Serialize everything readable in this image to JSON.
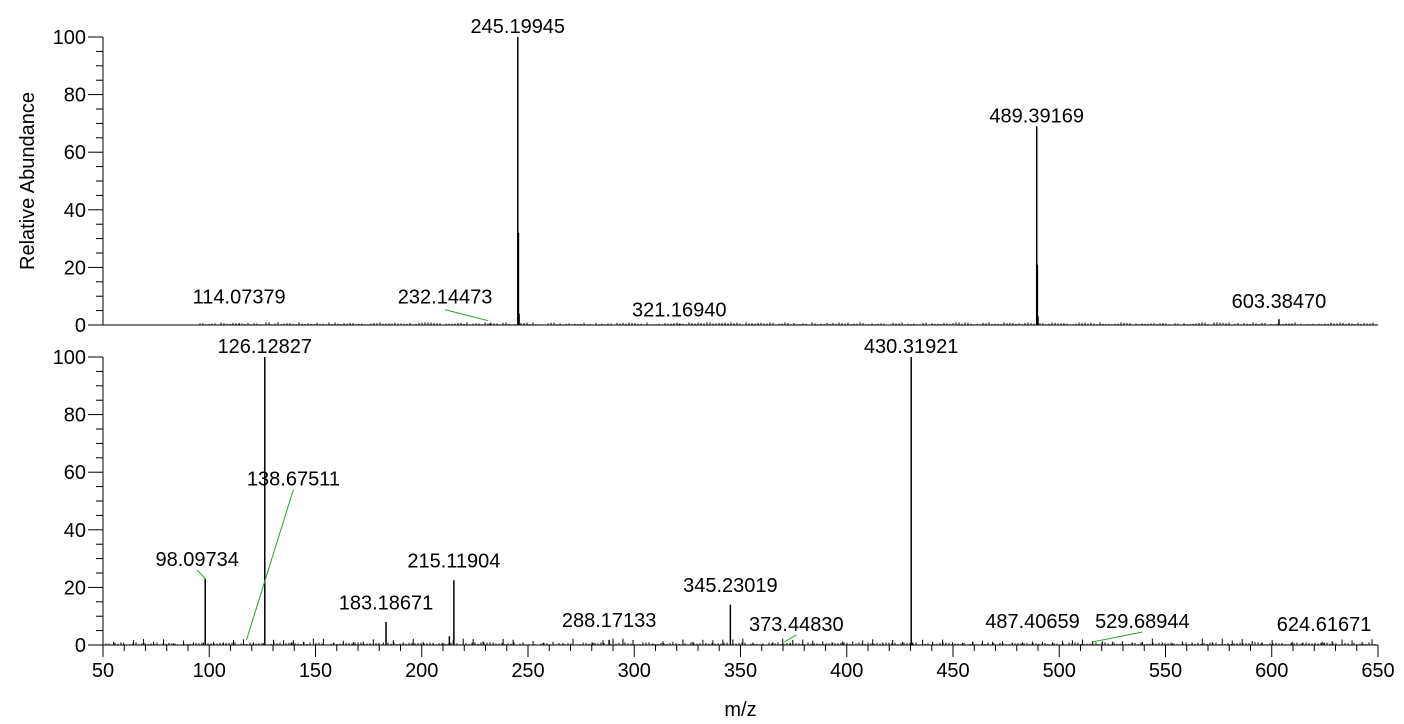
{
  "chart_data": [
    {
      "type": "bar",
      "subtype": "mass-spectrum",
      "ylabel": "Relative Abundance",
      "ylim": [
        0,
        100
      ],
      "y_ticks": [
        "0",
        "20",
        "40",
        "60",
        "80",
        "100"
      ],
      "xlim": [
        50,
        650
      ],
      "peaks": [
        {
          "mz": 114.07379,
          "intensity": 0.6
        },
        {
          "mz": 232.14473,
          "intensity": 0.5
        },
        {
          "mz": 245.19945,
          "intensity": 100
        },
        {
          "mz": 245.5,
          "intensity": 32
        },
        {
          "mz": 245.8,
          "intensity": 4
        },
        {
          "mz": 321.1694,
          "intensity": 0.4
        },
        {
          "mz": 489.39169,
          "intensity": 69
        },
        {
          "mz": 489.7,
          "intensity": 21
        },
        {
          "mz": 490.0,
          "intensity": 3
        },
        {
          "mz": 603.3847,
          "intensity": 2
        }
      ],
      "annotations": [
        {
          "text": "245.19945",
          "mz": 245.19945,
          "y": 100,
          "leader": false
        },
        {
          "text": "489.39169",
          "mz": 489.39169,
          "y": 69,
          "leader": false
        },
        {
          "text": "114.07379",
          "mz": 114.07379,
          "y": 6,
          "leader": false
        },
        {
          "text": "232.14473",
          "mz": 232.14473,
          "y": 6,
          "leader": true
        },
        {
          "text": "321.16940",
          "mz": 321.1694,
          "y": 1.5,
          "leader": false
        },
        {
          "text": "603.38470",
          "mz": 603.3847,
          "y": 4.5,
          "leader": false
        }
      ]
    },
    {
      "type": "bar",
      "subtype": "mass-spectrum",
      "xlabel": "m/z",
      "ylim": [
        0,
        100
      ],
      "y_ticks": [
        "0",
        "20",
        "40",
        "60",
        "80",
        "100"
      ],
      "xlim": [
        50,
        650
      ],
      "x_ticks": [
        "50",
        "100",
        "150",
        "200",
        "250",
        "300",
        "350",
        "400",
        "450",
        "500",
        "550",
        "600",
        "650"
      ],
      "peaks": [
        {
          "mz": 98.09734,
          "intensity": 23
        },
        {
          "mz": 126.12827,
          "intensity": 100
        },
        {
          "mz": 138.67511,
          "intensity": 0.8
        },
        {
          "mz": 183.18671,
          "intensity": 8
        },
        {
          "mz": 215.11904,
          "intensity": 22.5
        },
        {
          "mz": 213.0,
          "intensity": 3
        },
        {
          "mz": 288.17133,
          "intensity": 1.8
        },
        {
          "mz": 345.23019,
          "intensity": 14
        },
        {
          "mz": 373.4483,
          "intensity": 0.6
        },
        {
          "mz": 430.31921,
          "intensity": 100
        },
        {
          "mz": 487.40659,
          "intensity": 0.7
        },
        {
          "mz": 529.68944,
          "intensity": 0.5
        },
        {
          "mz": 624.61671,
          "intensity": 0.7
        }
      ],
      "annotations": [
        {
          "text": "126.12827",
          "mz": 126.12827,
          "y": 100,
          "leader": false
        },
        {
          "text": "430.31921",
          "mz": 430.31921,
          "y": 100,
          "leader": false
        },
        {
          "text": "138.67511",
          "mz": 138.67511,
          "y": 54,
          "leader": true
        },
        {
          "text": "98.09734",
          "mz": 98.09734,
          "y": 26,
          "leader": true
        },
        {
          "text": "215.11904",
          "mz": 215.11904,
          "y": 25.5,
          "leader": false
        },
        {
          "text": "345.23019",
          "mz": 345.23019,
          "y": 17,
          "leader": false
        },
        {
          "text": "183.18671",
          "mz": 183.18671,
          "y": 11,
          "leader": false
        },
        {
          "text": "288.17133",
          "mz": 288.17133,
          "y": 4.8,
          "leader": false
        },
        {
          "text": "373.44830",
          "mz": 373.4483,
          "y": 3.5,
          "leader": true
        },
        {
          "text": "487.40659",
          "mz": 487.40659,
          "y": 4.5,
          "leader": false
        },
        {
          "text": "529.68944",
          "mz": 529.68944,
          "y": 4.5,
          "leader": true
        },
        {
          "text": "624.61671",
          "mz": 624.61671,
          "y": 3.5,
          "leader": false
        }
      ]
    }
  ],
  "colors": {
    "peak": "#000000",
    "leader": "#2ca02c",
    "axis": "#000000"
  }
}
